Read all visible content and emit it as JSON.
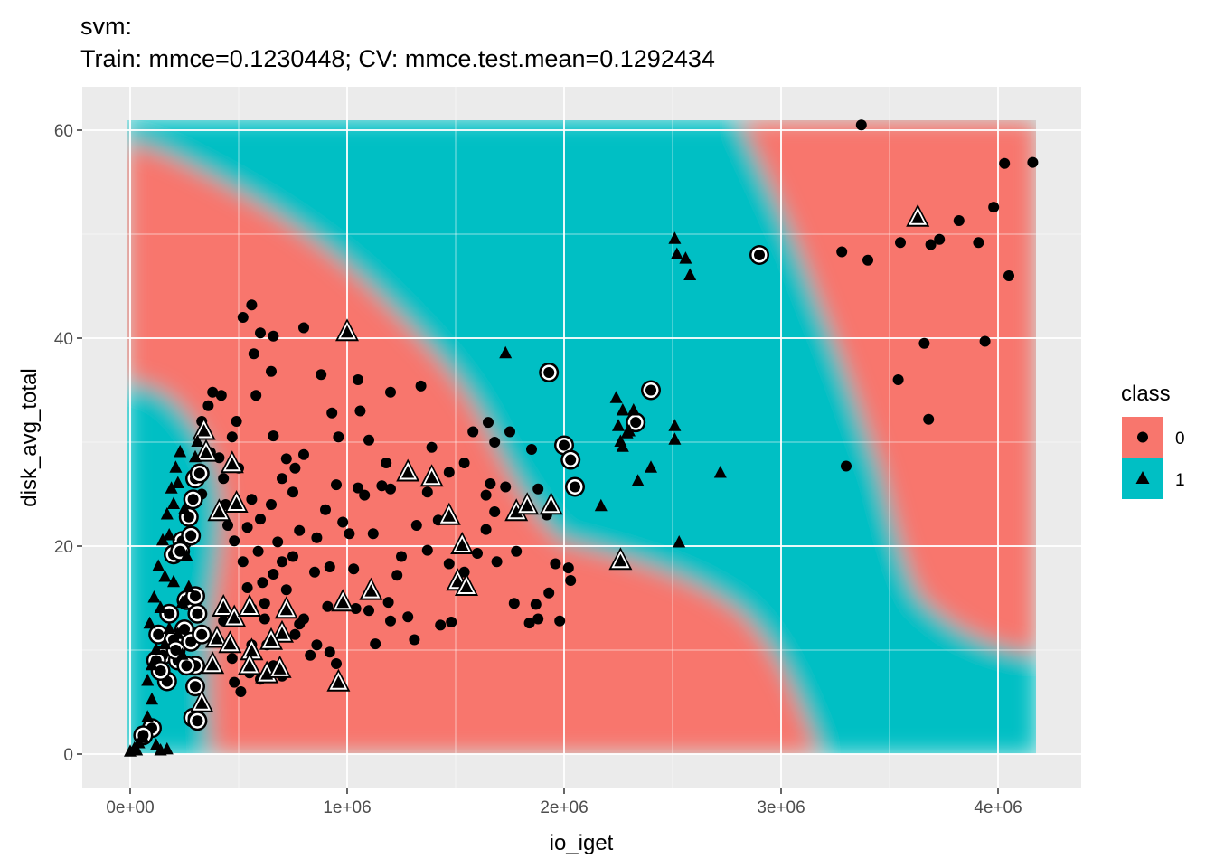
{
  "title_line1": "svm:",
  "title_line2": "Train: mmce=0.1230448; CV: mmce.test.mean=0.1292434",
  "chart_data": {
    "type": "scatter",
    "xlabel": "io_iget",
    "ylabel": "disk_avg_total",
    "xlim": [
      -220000,
      4400000
    ],
    "ylim": [
      -3,
      63
    ],
    "x_ticks": [
      0,
      1000000,
      2000000,
      3000000,
      4000000
    ],
    "x_tick_labels": [
      "0e+00",
      "1e+06",
      "2e+06",
      "3e+06",
      "4e+06"
    ],
    "y_ticks": [
      0,
      20,
      40,
      60
    ],
    "y_tick_labels": [
      "0",
      "20",
      "40",
      "60"
    ],
    "grid": true,
    "background": "decision regions shaded by predicted class",
    "legend": {
      "title": "class",
      "position": "right",
      "entries": [
        {
          "label": "0",
          "shape": "circle",
          "color": "#F8766D"
        },
        {
          "label": "1",
          "shape": "triangle",
          "color": "#00BFC4"
        }
      ]
    },
    "series": [
      {
        "name": "0",
        "marker": "circle",
        "points": [
          [
            3370000,
            60.5
          ],
          [
            4030000,
            56.8
          ],
          [
            4160000,
            56.9
          ],
          [
            3980000,
            52.6
          ],
          [
            3820000,
            51.3
          ],
          [
            3730000,
            49.5
          ],
          [
            3910000,
            49.2
          ],
          [
            3690000,
            49.0
          ],
          [
            3550000,
            49.2
          ],
          [
            3280000,
            48.3
          ],
          [
            3400000,
            47.5
          ],
          [
            4050000,
            46.0
          ],
          [
            3660000,
            39.5
          ],
          [
            3940000,
            39.7
          ],
          [
            3540000,
            36.0
          ],
          [
            3680000,
            32.2
          ],
          [
            3300000,
            27.7
          ],
          [
            560000,
            43.2
          ],
          [
            520000,
            42.0
          ],
          [
            600000,
            40.5
          ],
          [
            660000,
            40.2
          ],
          [
            570000,
            38.5
          ],
          [
            800000,
            41.0
          ],
          [
            420000,
            34.5
          ],
          [
            650000,
            36.8
          ],
          [
            880000,
            36.5
          ],
          [
            1050000,
            36.0
          ],
          [
            1200000,
            34.8
          ],
          [
            1340000,
            35.4
          ],
          [
            930000,
            32.8
          ],
          [
            1060000,
            33.0
          ],
          [
            960000,
            30.5
          ],
          [
            1100000,
            30.2
          ],
          [
            1390000,
            29.5
          ],
          [
            1580000,
            31.0
          ],
          [
            1650000,
            31.9
          ],
          [
            1680000,
            30.0
          ],
          [
            1850000,
            29.3
          ],
          [
            1540000,
            28.0
          ],
          [
            1180000,
            28.0
          ],
          [
            800000,
            28.8
          ],
          [
            700000,
            26.5
          ],
          [
            760000,
            27.5
          ],
          [
            950000,
            25.9
          ],
          [
            1050000,
            25.6
          ],
          [
            1160000,
            25.8
          ],
          [
            1200000,
            25.5
          ],
          [
            1370000,
            25.2
          ],
          [
            1640000,
            24.9
          ],
          [
            1680000,
            23.3
          ],
          [
            1880000,
            25.5
          ],
          [
            1920000,
            23.0
          ],
          [
            1420000,
            22.5
          ],
          [
            1320000,
            22.0
          ],
          [
            1120000,
            21.2
          ],
          [
            1010000,
            21.2
          ],
          [
            860000,
            20.8
          ],
          [
            780000,
            21.5
          ],
          [
            600000,
            22.6
          ],
          [
            540000,
            21.8
          ],
          [
            450000,
            22.0
          ],
          [
            560000,
            24.5
          ],
          [
            650000,
            24.0
          ],
          [
            700000,
            18.5
          ],
          [
            610000,
            16.5
          ],
          [
            540000,
            16.0
          ],
          [
            850000,
            17.5
          ],
          [
            920000,
            18.0
          ],
          [
            1030000,
            17.8
          ],
          [
            1230000,
            17.2
          ],
          [
            1540000,
            17.5
          ],
          [
            1600000,
            19.3
          ],
          [
            1780000,
            19.5
          ],
          [
            1960000,
            18.3
          ],
          [
            2020000,
            17.9
          ],
          [
            1930000,
            15.5
          ],
          [
            2030000,
            16.7
          ],
          [
            1770000,
            14.5
          ],
          [
            1840000,
            12.6
          ],
          [
            1880000,
            13.0
          ],
          [
            1980000,
            12.8
          ],
          [
            1870000,
            14.4
          ],
          [
            1190000,
            14.6
          ],
          [
            1040000,
            14.0
          ],
          [
            910000,
            14.2
          ],
          [
            800000,
            13.0
          ],
          [
            780000,
            12.5
          ],
          [
            1100000,
            13.8
          ],
          [
            1200000,
            12.8
          ],
          [
            1280000,
            13.2
          ],
          [
            1480000,
            12.7
          ],
          [
            860000,
            10.5
          ],
          [
            920000,
            9.8
          ],
          [
            950000,
            8.7
          ],
          [
            830000,
            9.5
          ],
          [
            660000,
            8.5
          ],
          [
            700000,
            7.5
          ],
          [
            480000,
            6.9
          ],
          [
            510000,
            6.0
          ],
          [
            600000,
            7.2
          ],
          [
            550000,
            7.8
          ],
          [
            430000,
            12.8
          ],
          [
            380000,
            34.8
          ],
          [
            360000,
            33.5
          ],
          [
            330000,
            32.0
          ],
          [
            470000,
            30.5
          ],
          [
            490000,
            32.0
          ],
          [
            410000,
            28.5
          ],
          [
            370000,
            29.0
          ],
          [
            330000,
            25.0
          ],
          [
            430000,
            26.5
          ],
          [
            500000,
            27.5
          ],
          [
            520000,
            18.5
          ],
          [
            590000,
            19.5
          ],
          [
            660000,
            17.3
          ],
          [
            720000,
            15.8
          ],
          [
            620000,
            14.5
          ],
          [
            700000,
            11.5
          ],
          [
            760000,
            11.5
          ],
          [
            630000,
            10.5
          ],
          [
            1430000,
            12.4
          ],
          [
            1310000,
            11.0
          ],
          [
            1130000,
            10.6
          ],
          [
            440000,
            24.0
          ],
          [
            480000,
            20.5
          ],
          [
            560000,
            14.0
          ],
          [
            620000,
            13.0
          ],
          [
            1660000,
            26.0
          ],
          [
            1470000,
            27.1
          ],
          [
            1730000,
            25.7
          ],
          [
            1750000,
            31.0
          ],
          [
            1640000,
            21.6
          ],
          [
            580000,
            34.5
          ],
          [
            660000,
            30.6
          ],
          [
            720000,
            28.4
          ],
          [
            750000,
            25.2
          ],
          [
            680000,
            20.4
          ],
          [
            750000,
            19.0
          ],
          [
            900000,
            23.5
          ],
          [
            980000,
            22.3
          ],
          [
            1080000,
            24.9
          ],
          [
            1250000,
            19.0
          ],
          [
            1370000,
            19.6
          ],
          [
            1470000,
            18.3
          ],
          [
            1690000,
            18.5
          ],
          [
            470000,
            9.2
          ],
          [
            560000,
            10.5
          ],
          [
            2900000,
            48.0
          ],
          [
            1930000,
            36.7
          ],
          [
            2400000,
            35.0
          ],
          [
            2330000,
            31.9
          ],
          [
            2000000,
            29.7
          ],
          [
            2030000,
            28.3
          ],
          [
            2050000,
            25.7
          ],
          [
            100000,
            2.5
          ],
          [
            60000,
            1.8
          ],
          [
            130000,
            11.5
          ],
          [
            180000,
            13.5
          ],
          [
            150000,
            9.5
          ],
          [
            200000,
            11.0
          ],
          [
            250000,
            12.0
          ],
          [
            220000,
            9.0
          ],
          [
            280000,
            10.8
          ],
          [
            300000,
            8.5
          ],
          [
            330000,
            11.5
          ],
          [
            260000,
            14.8
          ],
          [
            300000,
            15.2
          ],
          [
            310000,
            13.5
          ],
          [
            200000,
            19.2
          ],
          [
            240000,
            20.5
          ],
          [
            270000,
            22.8
          ],
          [
            300000,
            26.5
          ],
          [
            320000,
            27.0
          ],
          [
            290000,
            24.5
          ],
          [
            280000,
            21.0
          ],
          [
            230000,
            19.5
          ],
          [
            120000,
            9.0
          ],
          [
            170000,
            7.0
          ],
          [
            140000,
            8.0
          ],
          [
            210000,
            10.0
          ],
          [
            260000,
            8.5
          ],
          [
            300000,
            6.5
          ],
          [
            290000,
            3.5
          ],
          [
            310000,
            3.2
          ]
        ]
      },
      {
        "name": "1",
        "marker": "triangle",
        "points": [
          [
            1000000,
            40.5
          ],
          [
            1280000,
            27.0
          ],
          [
            1390000,
            26.5
          ],
          [
            1470000,
            22.8
          ],
          [
            1530000,
            20.0
          ],
          [
            1510000,
            16.5
          ],
          [
            1550000,
            16.0
          ],
          [
            1110000,
            15.6
          ],
          [
            980000,
            14.5
          ],
          [
            960000,
            6.8
          ],
          [
            1780000,
            23.2
          ],
          [
            1830000,
            23.8
          ],
          [
            1940000,
            23.8
          ],
          [
            2260000,
            18.5
          ],
          [
            3630000,
            51.5
          ],
          [
            2510000,
            49.5
          ],
          [
            2520000,
            48.0
          ],
          [
            2560000,
            47.6
          ],
          [
            2580000,
            46.0
          ],
          [
            1730000,
            38.5
          ],
          [
            2240000,
            34.2
          ],
          [
            2270000,
            33.0
          ],
          [
            2250000,
            31.5
          ],
          [
            2290000,
            30.8
          ],
          [
            2260000,
            30.0
          ],
          [
            2270000,
            29.5
          ],
          [
            2510000,
            31.5
          ],
          [
            2510000,
            30.2
          ],
          [
            2400000,
            27.5
          ],
          [
            2720000,
            27.0
          ],
          [
            2340000,
            26.2
          ],
          [
            2170000,
            23.8
          ],
          [
            2530000,
            20.3
          ],
          [
            2320000,
            33.0
          ],
          [
            2300000,
            31.0
          ],
          [
            340000,
            31.0
          ],
          [
            350000,
            28.9
          ],
          [
            470000,
            27.8
          ],
          [
            410000,
            23.2
          ],
          [
            490000,
            24.0
          ],
          [
            430000,
            14.0
          ],
          [
            480000,
            13.0
          ],
          [
            400000,
            11.0
          ],
          [
            460000,
            10.5
          ],
          [
            380000,
            8.5
          ],
          [
            330000,
            4.8
          ],
          [
            550000,
            14.0
          ],
          [
            720000,
            13.8
          ],
          [
            700000,
            11.5
          ],
          [
            650000,
            10.8
          ],
          [
            560000,
            9.8
          ],
          [
            550000,
            8.4
          ],
          [
            630000,
            7.6
          ],
          [
            690000,
            8.1
          ],
          [
            0,
            0.2
          ],
          [
            20000,
            0.5
          ],
          [
            40000,
            1.0
          ],
          [
            60000,
            1.5
          ],
          [
            80000,
            3.5
          ],
          [
            100000,
            5.2
          ],
          [
            120000,
            0.8
          ],
          [
            140000,
            0.3
          ],
          [
            30000,
            0.3
          ],
          [
            170000,
            0.4
          ],
          [
            90000,
            12.5
          ],
          [
            110000,
            15.0
          ],
          [
            130000,
            18.0
          ],
          [
            150000,
            20.5
          ],
          [
            170000,
            23.0
          ],
          [
            190000,
            25.5
          ],
          [
            210000,
            27.5
          ],
          [
            230000,
            29.0
          ],
          [
            160000,
            17.0
          ],
          [
            180000,
            21.0
          ],
          [
            200000,
            24.0
          ],
          [
            220000,
            26.0
          ],
          [
            140000,
            14.0
          ],
          [
            120000,
            10.0
          ],
          [
            100000,
            8.5
          ],
          [
            80000,
            7.0
          ],
          [
            250000,
            23.5
          ],
          [
            260000,
            19.0
          ],
          [
            270000,
            16.0
          ],
          [
            240000,
            14.5
          ],
          [
            200000,
            16.5
          ],
          [
            180000,
            12.0
          ],
          [
            160000,
            10.5
          ],
          [
            220000,
            11.5
          ],
          [
            240000,
            9.5
          ],
          [
            300000,
            28.5
          ],
          [
            310000,
            30.0
          ]
        ]
      }
    ]
  }
}
